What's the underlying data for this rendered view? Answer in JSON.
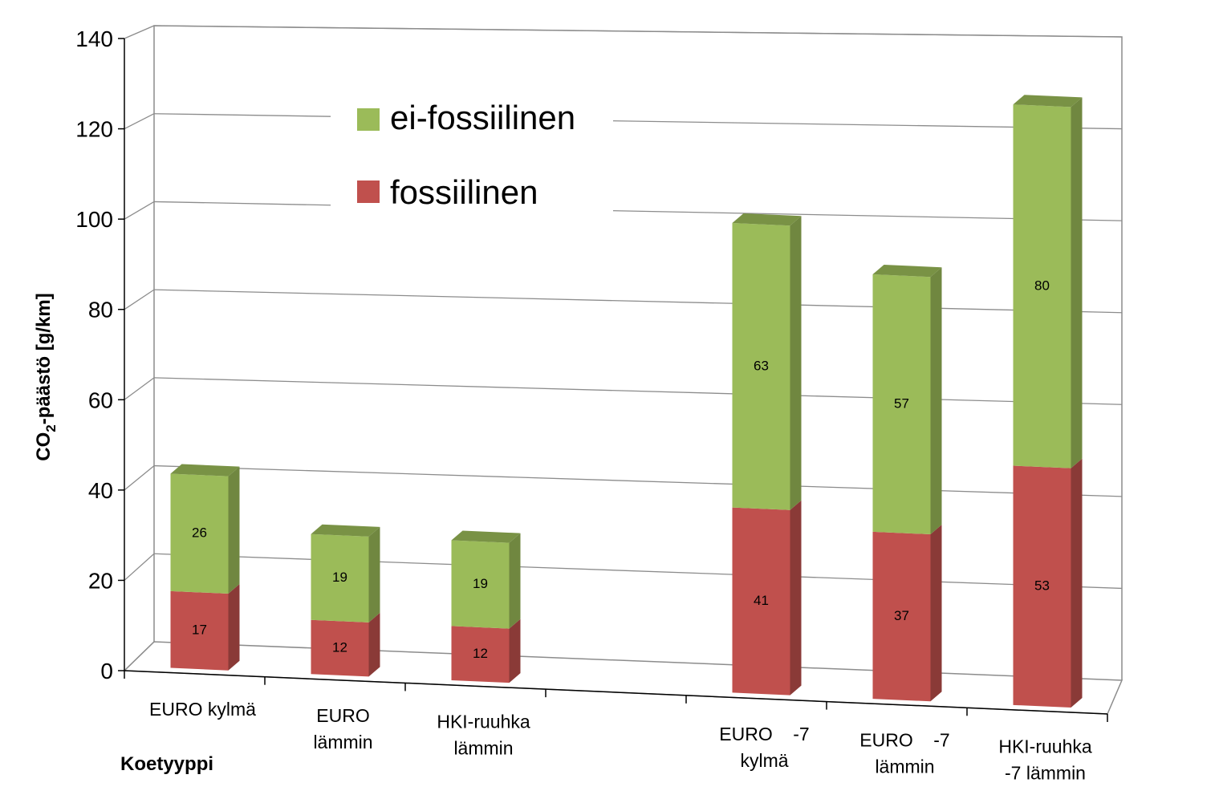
{
  "chart_data": {
    "type": "bar",
    "stacked": true,
    "three_d": true,
    "categories": [
      [
        "EURO kylmä"
      ],
      [
        "EURO",
        "lämmin"
      ],
      [
        "HKI-ruuhka",
        "lämmin"
      ],
      [
        "EURO    -7",
        "kylmä"
      ],
      [
        "EURO    -7",
        "lämmin"
      ],
      [
        "HKI-ruuhka",
        "-7 lämmin"
      ]
    ],
    "series": [
      {
        "name": "fossiilinen",
        "color": "#c0504d",
        "values": [
          17,
          12,
          12,
          41,
          37,
          53
        ]
      },
      {
        "name": "ei-fossiilinen",
        "color": "#9bbb59",
        "values": [
          26,
          19,
          19,
          63,
          57,
          80
        ]
      }
    ],
    "ylabel": {
      "main": "CO",
      "sub": "2",
      "rest": "-päästö  [g/km]"
    },
    "xlabel": "Koetyyppi",
    "ylim": [
      0,
      140
    ],
    "yticks": [
      0,
      20,
      40,
      60,
      80,
      100,
      120,
      140
    ],
    "grid": true,
    "legend_position": "top-center"
  }
}
